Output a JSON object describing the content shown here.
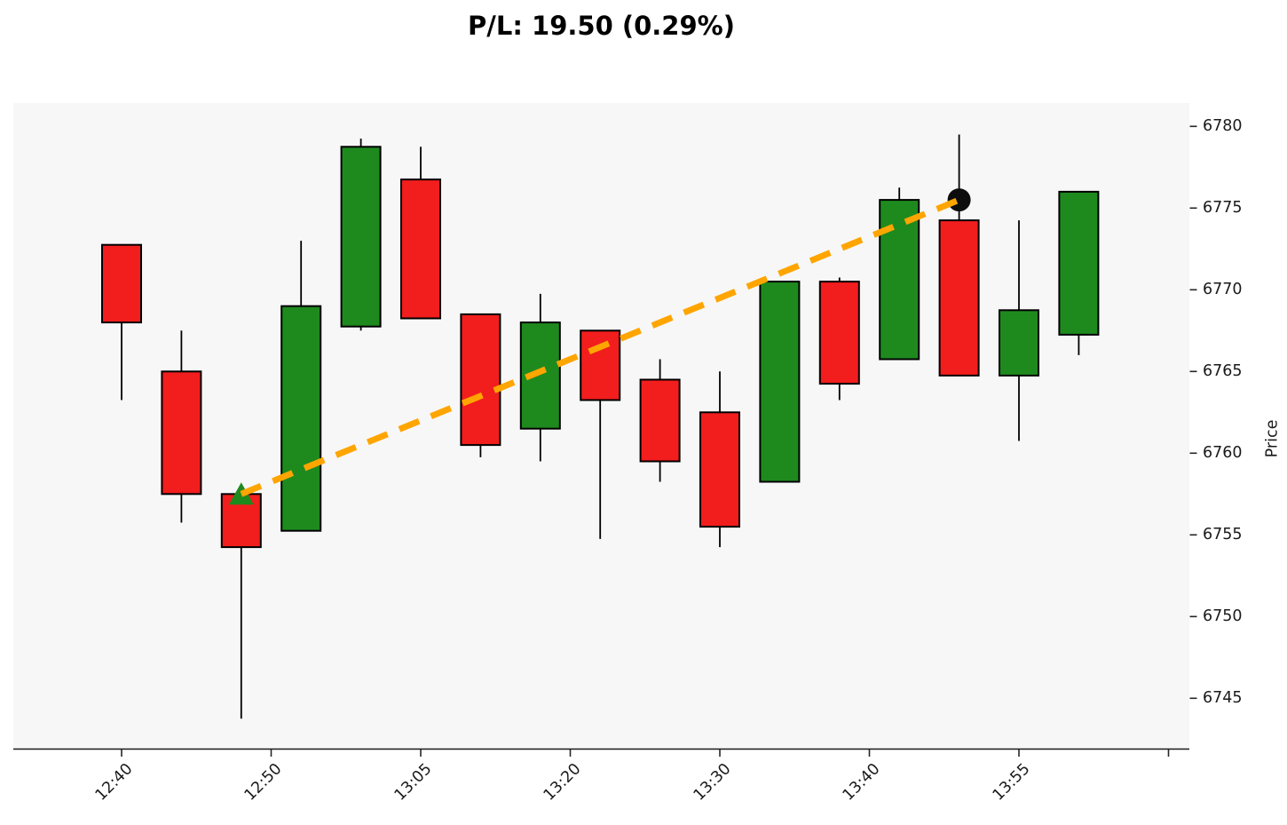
{
  "title": "P/L: 19.50 (0.29%)",
  "axes": {
    "y_label": "Price",
    "y_ticks": [
      6780,
      6775,
      6770,
      6765,
      6760,
      6755,
      6750,
      6745
    ],
    "x_tick_positions": [
      0,
      2.5,
      5,
      7.5,
      10,
      12.5,
      15,
      17.5
    ],
    "x_tick_labels": [
      "12:40",
      "12:50",
      "13:05",
      "13:20",
      "13:30",
      "13:40",
      "13:55",
      ""
    ]
  },
  "chart_data": {
    "type": "candlestick",
    "xlabel": "",
    "ylabel": "Price",
    "ylim": [
      6741.9,
      6781.4
    ],
    "grid": false,
    "candles": [
      {
        "time": "12:40",
        "open": 6772.75,
        "high": 6772.75,
        "low": 6763.25,
        "close": 6768.0
      },
      {
        "time": "12:45",
        "open": 6765.0,
        "high": 6767.5,
        "low": 6755.75,
        "close": 6757.5
      },
      {
        "time": "12:50",
        "open": 6757.5,
        "high": 6757.5,
        "low": 6743.75,
        "close": 6754.25
      },
      {
        "time": "12:55",
        "open": 6755.25,
        "high": 6773.0,
        "low": 6755.25,
        "close": 6769.0
      },
      {
        "time": "13:00",
        "open": 6767.75,
        "high": 6779.25,
        "low": 6767.5,
        "close": 6778.75
      },
      {
        "time": "13:05",
        "open": 6776.75,
        "high": 6778.75,
        "low": 6768.25,
        "close": 6768.25
      },
      {
        "time": "13:10",
        "open": 6768.5,
        "high": 6768.5,
        "low": 6759.75,
        "close": 6760.5
      },
      {
        "time": "13:15",
        "open": 6761.5,
        "high": 6769.75,
        "low": 6759.5,
        "close": 6768.0
      },
      {
        "time": "13:20",
        "open": 6767.5,
        "high": 6767.5,
        "low": 6754.75,
        "close": 6763.25
      },
      {
        "time": "13:25",
        "open": 6764.5,
        "high": 6765.75,
        "low": 6758.25,
        "close": 6759.5
      },
      {
        "time": "13:30",
        "open": 6762.5,
        "high": 6765.0,
        "low": 6754.25,
        "close": 6755.5
      },
      {
        "time": "13:35",
        "open": 6758.25,
        "high": 6770.5,
        "low": 6758.25,
        "close": 6770.5
      },
      {
        "time": "13:40",
        "open": 6770.5,
        "high": 6770.75,
        "low": 6763.25,
        "close": 6764.25
      },
      {
        "time": "13:45",
        "open": 6765.75,
        "high": 6776.25,
        "low": 6765.75,
        "close": 6775.5
      },
      {
        "time": "13:50",
        "open": 6774.25,
        "high": 6779.5,
        "low": 6764.75,
        "close": 6764.75
      },
      {
        "time": "13:55",
        "open": 6764.75,
        "high": 6774.25,
        "low": 6760.75,
        "close": 6768.75
      },
      {
        "time": "14:00",
        "open": 6767.25,
        "high": 6776.0,
        "low": 6766.0,
        "close": 6776.0
      }
    ],
    "trade": {
      "pl_points": 19.5,
      "pl_percent": 0.29,
      "entry_time": "12:50",
      "entry_marker_price": 6757.5,
      "exit_time": "13:50",
      "exit_marker_price": 6775.5,
      "entry_marker": "triangle-up",
      "exit_marker": "circle",
      "connector": "dashed-line"
    }
  },
  "colors": {
    "up_candle": "#1e8a1e",
    "down_candle": "#f21d1d",
    "candle_border": "#000000",
    "trade_line": "#ffa500",
    "entry_marker": "#1e8a1e",
    "exit_marker": "#0d0d0d",
    "plot_bg": "#f7f7f7",
    "axis": "#262626",
    "tick_text": "#1a1a1a"
  }
}
